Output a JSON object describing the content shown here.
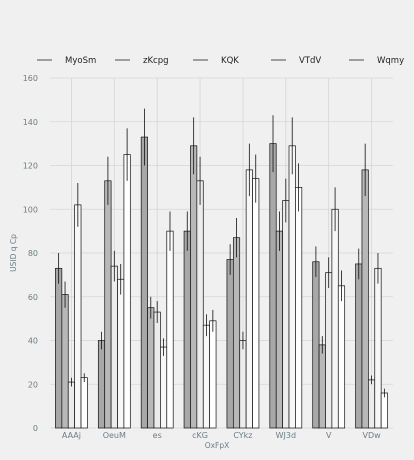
{
  "chart_data": {
    "type": "bar",
    "title": "",
    "xlabel": "OxFpX",
    "ylabel": "USID q Cp",
    "ylim": [
      0,
      160
    ],
    "yticks": [
      0,
      20,
      40,
      60,
      80,
      100,
      120,
      140,
      160
    ],
    "grid": true,
    "legend_position": "top",
    "categories": [
      "AAAj",
      "OeuM",
      "es",
      "cKG",
      "CYkz",
      "WJ3d",
      "V",
      "VDw"
    ],
    "series": [
      {
        "name": "MyoSm",
        "color": "#a8a8a8",
        "values": [
          73,
          40,
          133,
          90,
          77,
          130,
          76,
          75
        ],
        "errors": [
          7,
          4,
          13,
          9,
          7,
          13,
          7,
          7
        ]
      },
      {
        "name": "zKcpg",
        "color": "#b8b8b8",
        "values": [
          61,
          113,
          55,
          129,
          87,
          90,
          38,
          118
        ],
        "errors": [
          6,
          11,
          5,
          13,
          9,
          9,
          4,
          12
        ]
      },
      {
        "name": "KQK",
        "color": "#ececec",
        "values": [
          21,
          74,
          53,
          113,
          40,
          104,
          71,
          22
        ],
        "errors": [
          2,
          7,
          5,
          11,
          4,
          10,
          7,
          2
        ]
      },
      {
        "name": "VTdV",
        "color": "#f7f7f7",
        "values": [
          102,
          68,
          37,
          47,
          118,
          129,
          100,
          73
        ],
        "errors": [
          10,
          7,
          4,
          5,
          12,
          13,
          10,
          7
        ]
      },
      {
        "name": "Wqmy",
        "color": "#ffffff",
        "values": [
          23,
          125,
          90,
          49,
          114,
          110,
          65,
          16
        ],
        "errors": [
          2,
          12,
          9,
          5,
          11,
          11,
          7,
          2
        ]
      }
    ]
  }
}
